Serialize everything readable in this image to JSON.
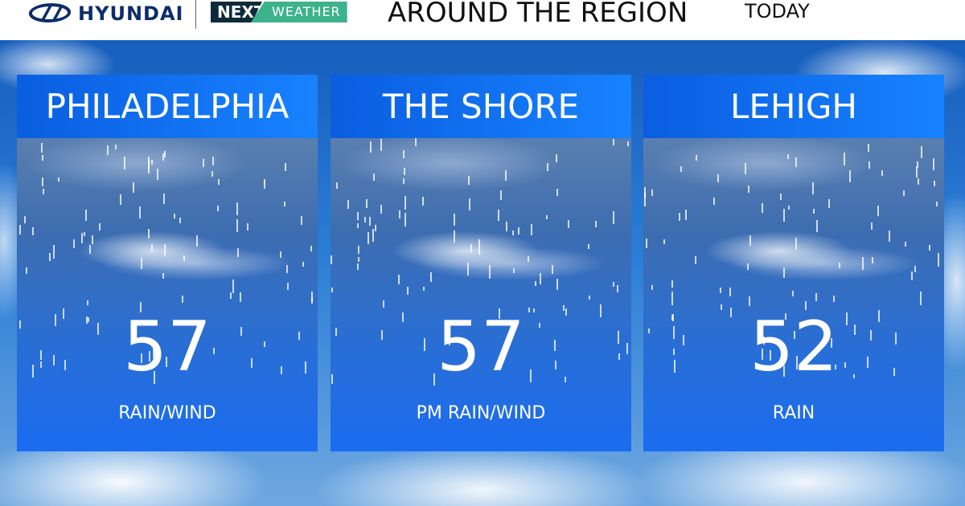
{
  "header": {
    "sponsor": "HYUNDAI",
    "brand_next": "NEXT",
    "brand_weather": "WEATHER",
    "title": "AROUND THE REGION",
    "period": "TODAY"
  },
  "colors": {
    "panel_header": "#1782ff",
    "next_dark": "#0e2a3a",
    "next_green": "#3cb38a",
    "hyundai_navy": "#0d2c6b"
  },
  "panels": [
    {
      "region": "PHILADELPHIA",
      "temp": "57",
      "condition": "RAIN/WIND",
      "icon": "rain-clouds"
    },
    {
      "region": "THE SHORE",
      "temp": "57",
      "condition": "PM RAIN/WIND",
      "icon": "rain-clouds"
    },
    {
      "region": "LEHIGH",
      "temp": "52",
      "condition": "RAIN",
      "icon": "rain-clouds"
    }
  ]
}
